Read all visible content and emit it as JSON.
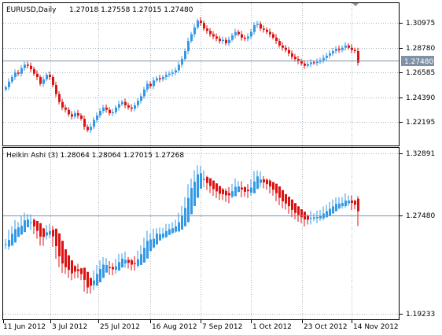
{
  "main_window": {
    "symbol_label": "EURUSD,Daily",
    "ohlc_values": "1.27018 1.27558 1.27015 1.27480",
    "price_scale": [
      "1.30975",
      "1.28780",
      "1.26585",
      "1.24390",
      "1.22195"
    ],
    "current_price_label": "1.27480"
  },
  "indicator_window": {
    "title": "Heikin Ashi (3) 1.28064 1.28064 1.27015 1.27268",
    "price_scale": [
      "1.32891",
      "1.27480",
      "1.19233"
    ]
  },
  "date_axis": [
    "11 Jun 2012",
    "3 Jul 2012",
    "25 Jul 2012",
    "16 Aug 2012",
    "7 Sep 2012",
    "1 Oct 2012",
    "23 Oct 2012",
    "14 Nov 2012"
  ],
  "colors": {
    "bull": "#3399e6",
    "bear": "#dd1111",
    "grid": "#a6b3bf",
    "price_line": "#7f92a6",
    "label_bg": "#7f92a6",
    "border": "#000000"
  },
  "chart_data": [
    {
      "type": "line",
      "title": "EURUSD,Daily",
      "ylim": [
        1.2065,
        1.3245
      ],
      "x": [
        "d0",
        "d1",
        "d2",
        "d3",
        "d4",
        "d5",
        "d6",
        "d7",
        "d8",
        "d9",
        "d10",
        "d11",
        "d12",
        "d13",
        "d14",
        "d15",
        "d16",
        "d17",
        "d18",
        "d19",
        "d20",
        "d21",
        "d22",
        "d23",
        "d24",
        "d25",
        "d26",
        "d27",
        "d28",
        "d29",
        "d30",
        "d31",
        "d32",
        "d33",
        "d34",
        "d35",
        "d36",
        "d37",
        "d38",
        "d39",
        "d40",
        "d41",
        "d42",
        "d43",
        "d44",
        "d45",
        "d46",
        "d47",
        "d48",
        "d49",
        "d50",
        "d51",
        "d52",
        "d53",
        "d54",
        "d55",
        "d56",
        "d57",
        "d58",
        "d59",
        "d60",
        "d61",
        "d62",
        "d63",
        "d64",
        "d65",
        "d66",
        "d67",
        "d68",
        "d69",
        "d70",
        "d71",
        "d72",
        "d73",
        "d74",
        "d75",
        "d76",
        "d77",
        "d78",
        "d79",
        "d80",
        "d81",
        "d82",
        "d83",
        "d84",
        "d85",
        "d86",
        "d87",
        "d88",
        "d89",
        "d90",
        "d91",
        "d92",
        "d93",
        "d94",
        "d95",
        "d96",
        "d97",
        "d98",
        "d99",
        "d100",
        "d101",
        "d102",
        "d103",
        "d104",
        "d105",
        "d106",
        "d107",
        "d108",
        "d109",
        "d110",
        "d111",
        "d112"
      ],
      "series": [
        {
          "values": [
            1.253,
            1.258,
            1.262,
            1.266,
            1.265,
            1.27,
            1.273,
            1.272,
            1.269,
            1.265,
            1.262,
            1.256,
            1.26,
            1.264,
            1.262,
            1.255,
            1.247,
            1.24,
            1.235,
            1.233,
            1.229,
            1.227,
            1.23,
            1.228,
            1.225,
            1.218,
            1.215,
            1.218,
            1.224,
            1.228,
            1.232,
            1.235,
            1.233,
            1.23,
            1.231,
            1.235,
            1.238,
            1.24,
            1.237,
            1.235,
            1.234,
            1.237,
            1.241,
            1.245,
            1.251,
            1.256,
            1.254,
            1.259,
            1.261,
            1.26,
            1.262,
            1.264,
            1.265,
            1.266,
            1.268,
            1.273,
            1.278,
            1.285,
            1.294,
            1.3,
            1.306,
            1.312,
            1.31,
            1.305,
            1.303,
            1.3,
            1.298,
            1.296,
            1.294,
            1.295,
            1.292,
            1.295,
            1.299,
            1.302,
            1.3,
            1.297,
            1.296,
            1.298,
            1.302,
            1.308,
            1.309,
            1.305,
            1.304,
            1.302,
            1.3,
            1.297,
            1.294,
            1.29,
            1.288,
            1.286,
            1.283,
            1.28,
            1.278,
            1.276,
            1.274,
            1.272,
            1.2735,
            1.275,
            1.2745,
            1.2755,
            1.277,
            1.279,
            1.281,
            1.283,
            1.285,
            1.287,
            1.286,
            1.288,
            1.29,
            1.288,
            1.286,
            1.285,
            1.2748
          ]
        }
      ]
    }
  ]
}
